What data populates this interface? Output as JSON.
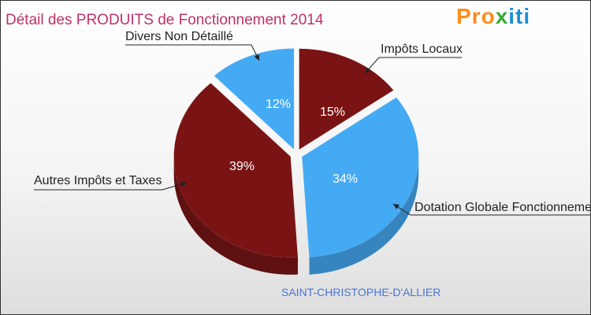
{
  "header": {
    "title": "Détail des PRODUITS de Fonctionnement 2014",
    "logo": "Proxiti",
    "logo_parts": [
      "Pro",
      "x",
      "iti"
    ]
  },
  "footer": {
    "city": "SAINT-CHRISTOPHE-D'ALLIER"
  },
  "colors": {
    "dark_red": "#7a1414",
    "light_blue": "#45aaf4",
    "title": "#c0306a",
    "city": "#4a74d9"
  },
  "chart_data": {
    "type": "pie",
    "title": "Détail des PRODUITS de Fonctionnement 2014",
    "slices": [
      {
        "label": "Impôts Locaux",
        "value": 15,
        "pct_label": "15%",
        "color": "#7a1414"
      },
      {
        "label": "Dotation Globale Fonctionnement",
        "value": 34,
        "pct_label": "34%",
        "color": "#45aaf4"
      },
      {
        "label": "Autres Impôts et Taxes",
        "value": 39,
        "pct_label": "39%",
        "color": "#7a1414"
      },
      {
        "label": "Divers Non Détaillé",
        "value": 12,
        "pct_label": "12%",
        "color": "#45aaf4"
      }
    ]
  }
}
